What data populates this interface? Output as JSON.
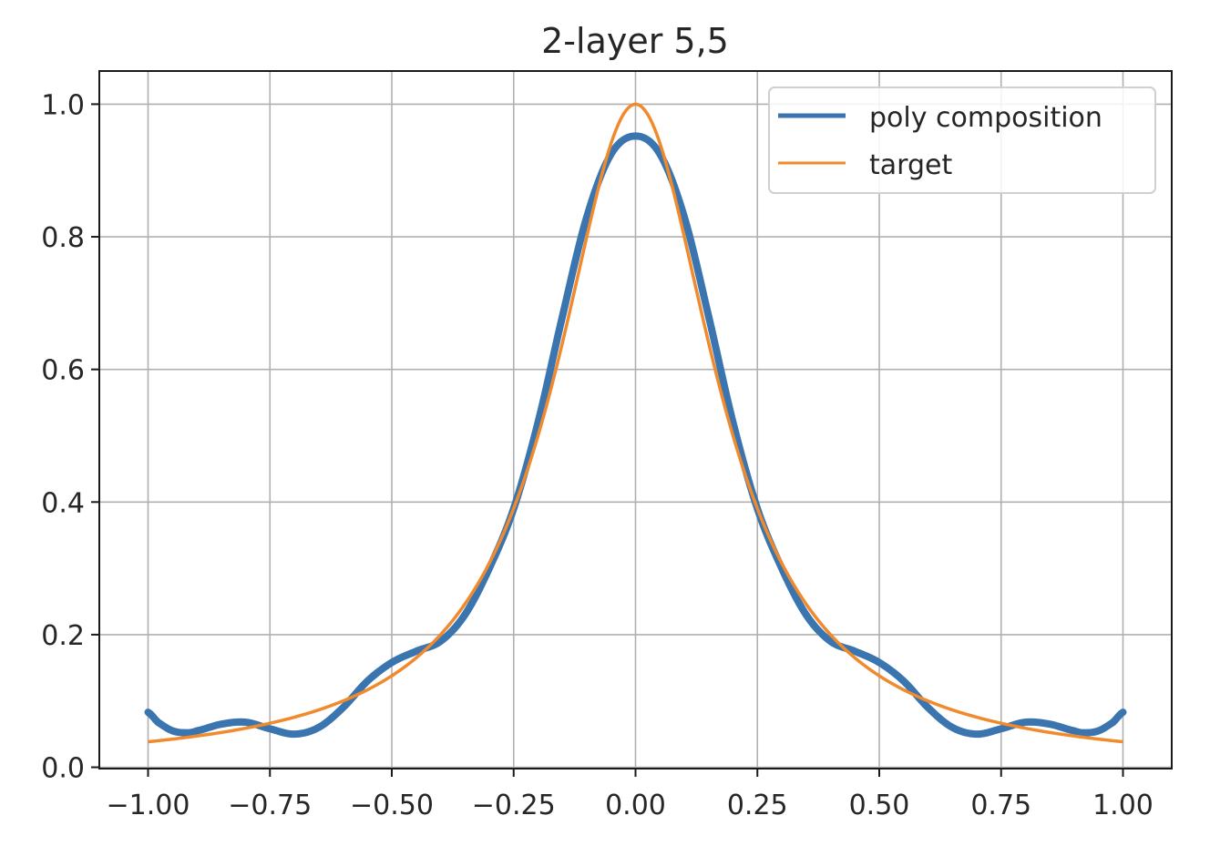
{
  "chart_data": {
    "type": "line",
    "title": "2-layer 5,5",
    "xlabel": "",
    "ylabel": "",
    "xlim": [
      -1.1,
      1.1
    ],
    "ylim": [
      -0.002,
      1.05
    ],
    "xticks": [
      -1.0,
      -0.75,
      -0.5,
      -0.25,
      0.0,
      0.25,
      0.5,
      0.75,
      1.0
    ],
    "xtick_labels": [
      "−1.00",
      "−0.75",
      "−0.50",
      "−0.25",
      "0.00",
      "0.25",
      "0.50",
      "0.75",
      "1.00"
    ],
    "yticks": [
      0.0,
      0.2,
      0.4,
      0.6,
      0.8,
      1.0
    ],
    "ytick_labels": [
      "0.0",
      "0.2",
      "0.4",
      "0.6",
      "0.8",
      "1.0"
    ],
    "grid": true,
    "legend_position": "top-right",
    "series": [
      {
        "name": "poly composition",
        "color": "#3a75b0",
        "marker": "point",
        "x": [
          -1.0,
          -0.98,
          -0.95,
          -0.92,
          -0.9,
          -0.85,
          -0.8,
          -0.75,
          -0.7,
          -0.65,
          -0.6,
          -0.55,
          -0.5,
          -0.45,
          -0.4,
          -0.35,
          -0.3,
          -0.25,
          -0.2,
          -0.15,
          -0.1,
          -0.05,
          0.0,
          0.05,
          0.1,
          0.15,
          0.2,
          0.25,
          0.3,
          0.35,
          0.4,
          0.45,
          0.5,
          0.55,
          0.6,
          0.65,
          0.7,
          0.75,
          0.8,
          0.85,
          0.9,
          0.92,
          0.95,
          0.98,
          1.0
        ],
        "y": [
          0.083,
          0.068,
          0.055,
          0.052,
          0.055,
          0.065,
          0.068,
          0.058,
          0.05,
          0.06,
          0.09,
          0.13,
          0.158,
          0.175,
          0.19,
          0.23,
          0.3,
          0.39,
          0.52,
          0.68,
          0.83,
          0.925,
          0.952,
          0.925,
          0.83,
          0.68,
          0.52,
          0.39,
          0.3,
          0.23,
          0.19,
          0.175,
          0.158,
          0.13,
          0.09,
          0.06,
          0.05,
          0.058,
          0.068,
          0.065,
          0.055,
          0.052,
          0.055,
          0.068,
          0.083
        ]
      },
      {
        "name": "target",
        "color": "#f08a2c",
        "marker": "none",
        "function": "1/(1+25x^2)",
        "x_range": [
          -1.0,
          1.0
        ]
      }
    ]
  }
}
